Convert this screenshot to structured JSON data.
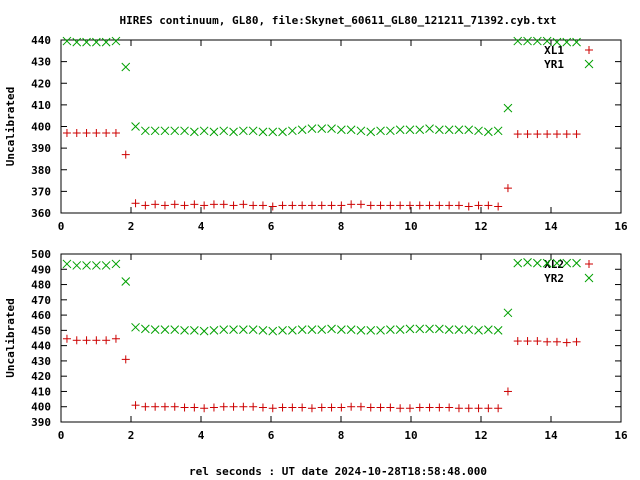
{
  "title": "HIRES continuum, GL80, file:Skynet_60611_GL80_121211_71392.cyb.txt",
  "xlabel": "rel seconds : UT date 2024-10-28T18:58:48.000",
  "chart_data": [
    {
      "type": "scatter",
      "ylabel": "Uncalibrated",
      "xlim": [
        0,
        16
      ],
      "ylim": [
        360,
        440
      ],
      "xticks": [
        0,
        2,
        4,
        6,
        8,
        10,
        12,
        14,
        16
      ],
      "yticks": [
        360,
        370,
        380,
        390,
        400,
        410,
        420,
        430,
        440
      ],
      "legend_position": "top-right",
      "grid": false,
      "series": [
        {
          "name": "XL1",
          "marker": "plus",
          "color": "#cc0000",
          "x": [
            0.17,
            0.45,
            0.73,
            1.01,
            1.29,
            1.57,
            1.85,
            2.13,
            2.41,
            2.69,
            2.97,
            3.25,
            3.53,
            3.81,
            4.09,
            4.37,
            4.65,
            4.93,
            5.21,
            5.49,
            5.77,
            6.05,
            6.33,
            6.61,
            6.89,
            7.17,
            7.45,
            7.73,
            8.01,
            8.29,
            8.57,
            8.85,
            9.13,
            9.41,
            9.69,
            9.97,
            10.25,
            10.53,
            10.81,
            11.09,
            11.37,
            11.65,
            11.93,
            12.21,
            12.49,
            12.77,
            13.05,
            13.33,
            13.61,
            13.89,
            14.17,
            14.45,
            14.73
          ],
          "y": [
            397,
            397,
            397,
            397,
            397,
            397,
            387,
            364.5,
            363.5,
            364,
            363.5,
            364,
            363.5,
            364,
            363.5,
            364,
            364,
            363.5,
            364,
            363.5,
            363.5,
            363,
            363.5,
            363.5,
            363.5,
            363.5,
            363.5,
            363.5,
            363.5,
            364,
            364,
            363.5,
            363.5,
            363.5,
            363.5,
            363.5,
            363.5,
            363.5,
            363.5,
            363.5,
            363.5,
            363,
            363.5,
            363.5,
            363,
            371.5,
            396.5,
            396.5,
            396.5,
            396.5,
            396.5,
            396.5,
            396.5
          ]
        },
        {
          "name": "YR1",
          "marker": "cross",
          "color": "#00a000",
          "x": [
            0.17,
            0.45,
            0.73,
            1.01,
            1.29,
            1.57,
            1.85,
            2.13,
            2.41,
            2.69,
            2.97,
            3.25,
            3.53,
            3.81,
            4.09,
            4.37,
            4.65,
            4.93,
            5.21,
            5.49,
            5.77,
            6.05,
            6.33,
            6.61,
            6.89,
            7.17,
            7.45,
            7.73,
            8.01,
            8.29,
            8.57,
            8.85,
            9.13,
            9.41,
            9.69,
            9.97,
            10.25,
            10.53,
            10.81,
            11.09,
            11.37,
            11.65,
            11.93,
            12.21,
            12.49,
            12.77,
            13.05,
            13.33,
            13.61,
            13.89,
            14.17,
            14.45,
            14.73
          ],
          "y": [
            439.5,
            439,
            439,
            439,
            439,
            439.5,
            427.5,
            400,
            398,
            398,
            398,
            398,
            398,
            397.5,
            398,
            397.5,
            398,
            397.5,
            398,
            398,
            397.5,
            397.5,
            397.5,
            398,
            398.5,
            399,
            399,
            399,
            398.5,
            398.5,
            398,
            397.5,
            398,
            398,
            398.5,
            398.5,
            398.5,
            399,
            398.5,
            398.5,
            398.5,
            398.5,
            398,
            397.5,
            398,
            408.5,
            439.5,
            439.5,
            439.5,
            439.5,
            439,
            439,
            439
          ]
        }
      ]
    },
    {
      "type": "scatter",
      "ylabel": "Uncalibrated",
      "xlim": [
        0,
        16
      ],
      "ylim": [
        390,
        500
      ],
      "xticks": [
        0,
        2,
        4,
        6,
        8,
        10,
        12,
        14,
        16
      ],
      "yticks": [
        390,
        400,
        410,
        420,
        430,
        440,
        450,
        460,
        470,
        480,
        490,
        500
      ],
      "legend_position": "top-right",
      "grid": false,
      "series": [
        {
          "name": "XL2",
          "marker": "plus",
          "color": "#cc0000",
          "x": [
            0.17,
            0.45,
            0.73,
            1.01,
            1.29,
            1.57,
            1.85,
            2.13,
            2.41,
            2.69,
            2.97,
            3.25,
            3.53,
            3.81,
            4.09,
            4.37,
            4.65,
            4.93,
            5.21,
            5.49,
            5.77,
            6.05,
            6.33,
            6.61,
            6.89,
            7.17,
            7.45,
            7.73,
            8.01,
            8.29,
            8.57,
            8.85,
            9.13,
            9.41,
            9.69,
            9.97,
            10.25,
            10.53,
            10.81,
            11.09,
            11.37,
            11.65,
            11.93,
            12.21,
            12.49,
            12.77,
            13.05,
            13.33,
            13.61,
            13.89,
            14.17,
            14.45,
            14.73
          ],
          "y": [
            444.5,
            443.5,
            443.5,
            443.5,
            443.5,
            444.5,
            431,
            401,
            400,
            400,
            400,
            400,
            399.5,
            399.5,
            399,
            399.5,
            400,
            400,
            400,
            400,
            399.5,
            399,
            399.5,
            399.5,
            399.5,
            399,
            399.5,
            399.5,
            399.5,
            400,
            400,
            399.5,
            399.5,
            399.5,
            399,
            399,
            399.5,
            399.5,
            399.5,
            399.5,
            399,
            399,
            399,
            399,
            399,
            410,
            443,
            443,
            443,
            442.5,
            442.5,
            442,
            442.5
          ]
        },
        {
          "name": "YR2",
          "marker": "cross",
          "color": "#00a000",
          "x": [
            0.17,
            0.45,
            0.73,
            1.01,
            1.29,
            1.57,
            1.85,
            2.13,
            2.41,
            2.69,
            2.97,
            3.25,
            3.53,
            3.81,
            4.09,
            4.37,
            4.65,
            4.93,
            5.21,
            5.49,
            5.77,
            6.05,
            6.33,
            6.61,
            6.89,
            7.17,
            7.45,
            7.73,
            8.01,
            8.29,
            8.57,
            8.85,
            9.13,
            9.41,
            9.69,
            9.97,
            10.25,
            10.53,
            10.81,
            11.09,
            11.37,
            11.65,
            11.93,
            12.21,
            12.49,
            12.77,
            13.05,
            13.33,
            13.61,
            13.89,
            14.17,
            14.45,
            14.73
          ],
          "y": [
            493.5,
            492.5,
            492.5,
            492.5,
            492.5,
            493.5,
            482,
            452,
            451,
            450.5,
            450.5,
            450.5,
            450,
            450,
            449.5,
            450,
            450.5,
            450.5,
            450.5,
            450.5,
            450,
            449.5,
            450,
            450,
            450.5,
            450.5,
            450.5,
            451,
            450.5,
            450.5,
            450,
            450,
            450,
            450.5,
            450.5,
            451,
            451,
            451,
            451,
            450.5,
            450.5,
            450.5,
            450,
            450.5,
            450,
            461.5,
            494,
            494.5,
            494,
            494,
            494,
            494,
            494
          ]
        }
      ]
    }
  ]
}
